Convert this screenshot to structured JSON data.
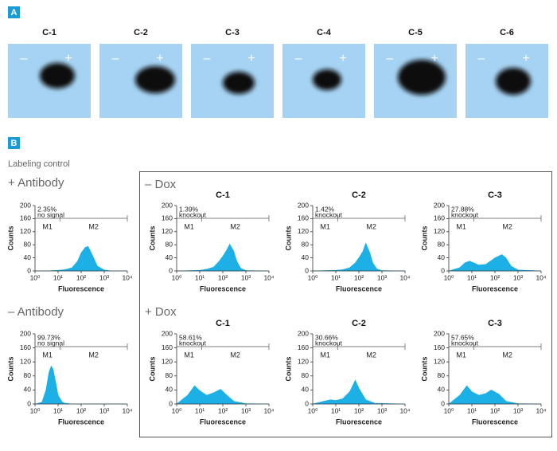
{
  "panel_a": {
    "label": "A",
    "lanes": [
      "C-1",
      "C-2",
      "C-3",
      "C-4",
      "C-5",
      "C-6"
    ],
    "minus": "–",
    "plus": "+"
  },
  "panel_b": {
    "label": "B",
    "note": "Labeling control",
    "groups": [
      "+ Antibody",
      "– Antibody",
      "– Dox",
      "+ Dox"
    ]
  },
  "chart_data": [
    {
      "type": "area",
      "percent_label": "2.35%",
      "note": "no signal",
      "x_label": "Fluorescence",
      "y_label": "Counts",
      "color": "#1cb0e6",
      "log_x": true,
      "xlim": [
        1,
        10000
      ],
      "ylim": [
        0,
        200
      ],
      "xticks": [
        {
          "value": 1,
          "label": "10⁰"
        },
        {
          "value": 10,
          "label": "10¹"
        },
        {
          "value": 100,
          "label": "10²"
        },
        {
          "value": 1000,
          "label": "10³"
        },
        {
          "value": 10000,
          "label": "10⁴"
        }
      ],
      "yticks": [
        0,
        40,
        80,
        120,
        160,
        200
      ],
      "gates": [
        {
          "label": "M1",
          "range": [
            1,
            12
          ]
        },
        {
          "label": "M2",
          "range": [
            12,
            10000
          ]
        }
      ],
      "x": [
        1,
        3,
        10,
        20,
        40,
        70,
        100,
        150,
        200,
        300,
        500,
        1000,
        2000,
        10000
      ],
      "values": [
        0,
        0,
        2,
        4,
        10,
        30,
        55,
        72,
        75,
        50,
        15,
        3,
        0,
        0
      ]
    },
    {
      "type": "area",
      "percent_label": "99.73%",
      "note": "no signal",
      "x_label": "Fluorescence",
      "y_label": "Counts",
      "color": "#1cb0e6",
      "log_x": true,
      "xlim": [
        1,
        10000
      ],
      "ylim": [
        0,
        200
      ],
      "xticks": [
        {
          "value": 1,
          "label": "10⁰"
        },
        {
          "value": 10,
          "label": "10¹"
        },
        {
          "value": 100,
          "label": "10²"
        },
        {
          "value": 1000,
          "label": "10³"
        },
        {
          "value": 10000,
          "label": "10⁴"
        }
      ],
      "yticks": [
        0,
        40,
        80,
        120,
        160,
        200
      ],
      "gates": [
        {
          "label": "M1",
          "range": [
            1,
            12
          ]
        },
        {
          "label": "M2",
          "range": [
            12,
            10000
          ]
        }
      ],
      "x": [
        1,
        2,
        3,
        4,
        5,
        6,
        8,
        10,
        15,
        20,
        40,
        100,
        10000
      ],
      "values": [
        0,
        5,
        40,
        90,
        108,
        100,
        60,
        25,
        6,
        2,
        0,
        0,
        0
      ]
    },
    {
      "type": "area",
      "title": "C-1",
      "percent_label": "1.39%",
      "note": "knockout",
      "x_label": "Fluorescence",
      "y_label": "Counts",
      "color": "#1cb0e6",
      "log_x": true,
      "xlim": [
        1,
        10000
      ],
      "ylim": [
        0,
        200
      ],
      "xticks": [
        {
          "value": 1,
          "label": "10⁰"
        },
        {
          "value": 10,
          "label": "10¹"
        },
        {
          "value": 100,
          "label": "10²"
        },
        {
          "value": 1000,
          "label": "10³"
        },
        {
          "value": 10000,
          "label": "10⁴"
        }
      ],
      "yticks": [
        0,
        40,
        80,
        120,
        160,
        200
      ],
      "gates": [
        {
          "label": "M1",
          "range": [
            1,
            12
          ]
        },
        {
          "label": "M2",
          "range": [
            12,
            10000
          ]
        }
      ],
      "x": [
        1,
        10,
        20,
        40,
        70,
        100,
        150,
        200,
        300,
        400,
        600,
        1000,
        10000
      ],
      "values": [
        0,
        2,
        5,
        12,
        30,
        45,
        65,
        82,
        60,
        30,
        8,
        1,
        0
      ]
    },
    {
      "type": "area",
      "title": "C-2",
      "percent_label": "1.42%",
      "note": "knockout",
      "x_label": "Fluorescence",
      "y_label": "Counts",
      "color": "#1cb0e6",
      "log_x": true,
      "xlim": [
        1,
        10000
      ],
      "ylim": [
        0,
        200
      ],
      "xticks": [
        {
          "value": 1,
          "label": "10⁰"
        },
        {
          "value": 10,
          "label": "10¹"
        },
        {
          "value": 100,
          "label": "10²"
        },
        {
          "value": 1000,
          "label": "10³"
        },
        {
          "value": 10000,
          "label": "10⁴"
        }
      ],
      "yticks": [
        0,
        40,
        80,
        120,
        160,
        200
      ],
      "gates": [
        {
          "label": "M1",
          "range": [
            1,
            12
          ]
        },
        {
          "label": "M2",
          "range": [
            12,
            10000
          ]
        }
      ],
      "x": [
        1,
        10,
        20,
        40,
        70,
        100,
        150,
        200,
        300,
        400,
        600,
        1000,
        10000
      ],
      "values": [
        0,
        2,
        4,
        10,
        25,
        40,
        60,
        85,
        55,
        25,
        6,
        1,
        0
      ]
    },
    {
      "type": "area",
      "title": "C-3",
      "percent_label": "27.88%",
      "note": "knockout",
      "x_label": "Fluorescence",
      "y_label": "Counts",
      "color": "#1cb0e6",
      "log_x": true,
      "xlim": [
        1,
        10000
      ],
      "ylim": [
        0,
        200
      ],
      "xticks": [
        {
          "value": 1,
          "label": "10⁰"
        },
        {
          "value": 10,
          "label": "10¹"
        },
        {
          "value": 100,
          "label": "10²"
        },
        {
          "value": 1000,
          "label": "10³"
        },
        {
          "value": 10000,
          "label": "10⁴"
        }
      ],
      "yticks": [
        0,
        40,
        80,
        120,
        160,
        200
      ],
      "gates": [
        {
          "label": "M1",
          "range": [
            1,
            12
          ]
        },
        {
          "label": "M2",
          "range": [
            12,
            10000
          ]
        }
      ],
      "x": [
        1,
        3,
        5,
        8,
        12,
        20,
        40,
        70,
        100,
        200,
        300,
        500,
        1000,
        10000
      ],
      "values": [
        0,
        10,
        25,
        30,
        25,
        18,
        20,
        32,
        40,
        50,
        40,
        15,
        3,
        0
      ]
    },
    {
      "type": "area",
      "title": "C-1",
      "percent_label": "58.61%",
      "note": "knockout",
      "x_label": "Fluorescence",
      "y_label": "Counts",
      "color": "#1cb0e6",
      "log_x": true,
      "xlim": [
        1,
        10000
      ],
      "ylim": [
        0,
        200
      ],
      "xticks": [
        {
          "value": 1,
          "label": "10⁰"
        },
        {
          "value": 10,
          "label": "10¹"
        },
        {
          "value": 100,
          "label": "10²"
        },
        {
          "value": 1000,
          "label": "10³"
        },
        {
          "value": 10000,
          "label": "10⁴"
        }
      ],
      "yticks": [
        0,
        40,
        80,
        120,
        160,
        200
      ],
      "gates": [
        {
          "label": "M1",
          "range": [
            1,
            12
          ]
        },
        {
          "label": "M2",
          "range": [
            12,
            10000
          ]
        }
      ],
      "x": [
        1,
        3,
        6,
        10,
        20,
        40,
        80,
        150,
        300,
        1000,
        10000
      ],
      "values": [
        0,
        25,
        52,
        38,
        25,
        32,
        42,
        25,
        8,
        1,
        0
      ]
    },
    {
      "type": "area",
      "title": "C-2",
      "percent_label": "30.66%",
      "note": "knockout",
      "x_label": "Fluorescence",
      "y_label": "Counts",
      "color": "#1cb0e6",
      "log_x": true,
      "xlim": [
        1,
        10000
      ],
      "ylim": [
        0,
        200
      ],
      "xticks": [
        {
          "value": 1,
          "label": "10⁰"
        },
        {
          "value": 10,
          "label": "10¹"
        },
        {
          "value": 100,
          "label": "10²"
        },
        {
          "value": 1000,
          "label": "10³"
        },
        {
          "value": 10000,
          "label": "10⁴"
        }
      ],
      "yticks": [
        0,
        40,
        80,
        120,
        160,
        200
      ],
      "gates": [
        {
          "label": "M1",
          "range": [
            1,
            12
          ]
        },
        {
          "label": "M2",
          "range": [
            12,
            10000
          ]
        }
      ],
      "x": [
        1,
        3,
        6,
        10,
        20,
        40,
        70,
        100,
        200,
        500,
        10000
      ],
      "values": [
        0,
        8,
        12,
        10,
        15,
        35,
        68,
        45,
        12,
        2,
        0
      ]
    },
    {
      "type": "area",
      "title": "C-3",
      "percent_label": "57.65%",
      "note": "knockout",
      "x_label": "Fluorescence",
      "y_label": "Counts",
      "color": "#1cb0e6",
      "log_x": true,
      "xlim": [
        1,
        10000
      ],
      "ylim": [
        0,
        200
      ],
      "xticks": [
        {
          "value": 1,
          "label": "10⁰"
        },
        {
          "value": 10,
          "label": "10¹"
        },
        {
          "value": 100,
          "label": "10²"
        },
        {
          "value": 1000,
          "label": "10³"
        },
        {
          "value": 10000,
          "label": "10⁴"
        }
      ],
      "yticks": [
        0,
        40,
        80,
        120,
        160,
        200
      ],
      "gates": [
        {
          "label": "M1",
          "range": [
            1,
            12
          ]
        },
        {
          "label": "M2",
          "range": [
            12,
            10000
          ]
        }
      ],
      "x": [
        1,
        3,
        6,
        10,
        20,
        40,
        70,
        150,
        300,
        1000,
        10000
      ],
      "values": [
        0,
        25,
        52,
        35,
        25,
        30,
        40,
        28,
        8,
        1,
        0
      ]
    }
  ]
}
